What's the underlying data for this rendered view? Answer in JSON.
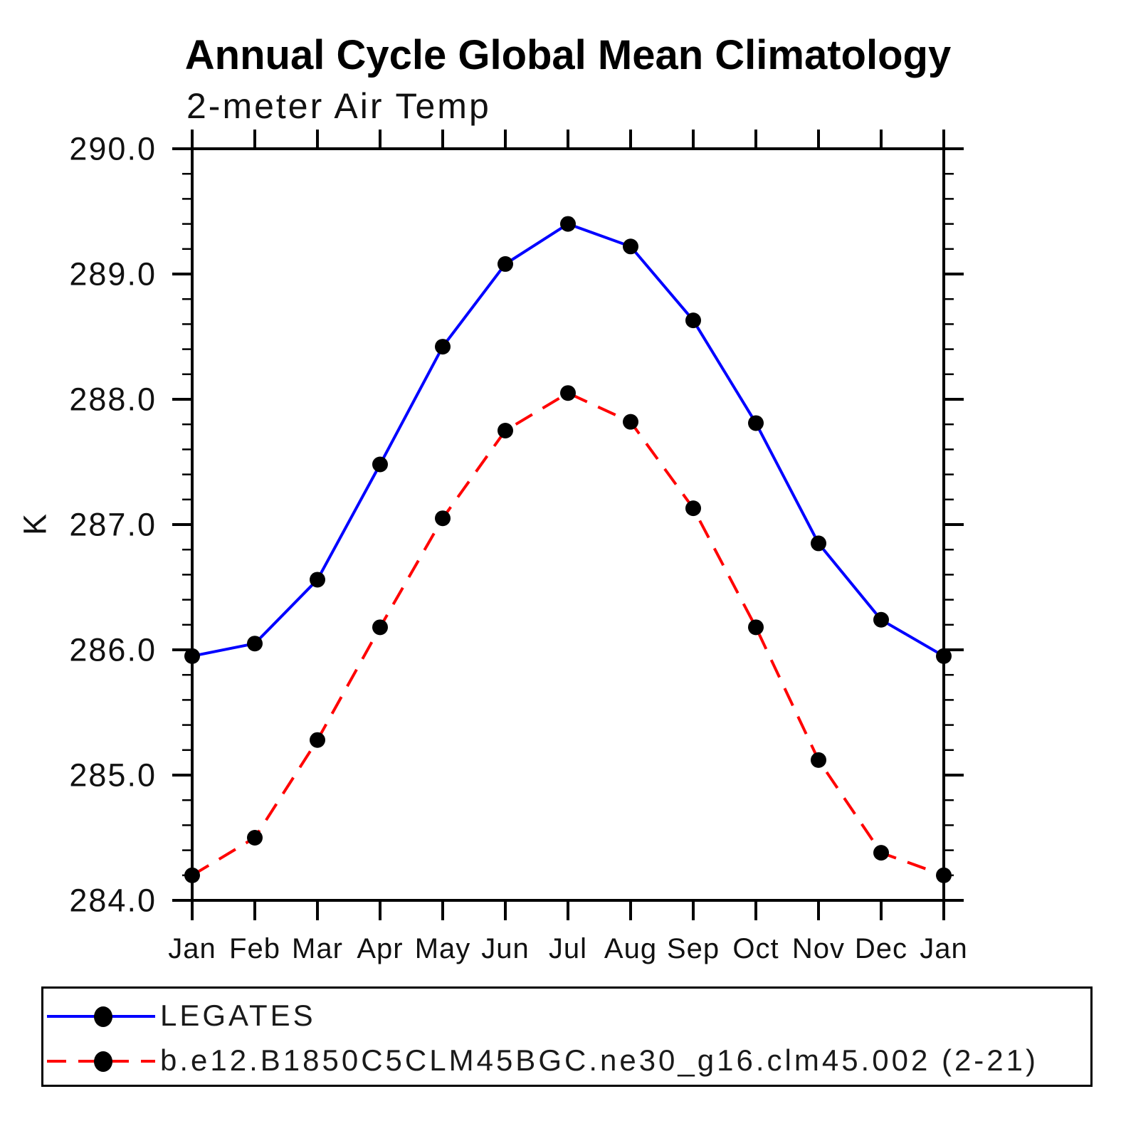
{
  "title": "Annual Cycle Global Mean Climatology",
  "subtitle": "2-meter Air Temp",
  "y_axis": {
    "label": "K",
    "min": 284.0,
    "max": 290.0,
    "major_step": 1.0,
    "minor_step": 0.2,
    "major_tick_labels": [
      "290.0",
      "289.0",
      "288.0",
      "287.0",
      "286.0",
      "285.0",
      "284.0"
    ]
  },
  "x_axis": {
    "labels": [
      "Jan",
      "Feb",
      "Mar",
      "Apr",
      "May",
      "Jun",
      "Jul",
      "Aug",
      "Sep",
      "Oct",
      "Nov",
      "Dec",
      "Jan"
    ]
  },
  "legend": {
    "entries": [
      {
        "label": "LEGATES",
        "color": "#0000ff",
        "style": "solid"
      },
      {
        "label": "b.e12.B1850C5CLM45BGC.ne30_g16.clm45.002 (2-21)",
        "color": "#ff0000",
        "style": "dashed"
      }
    ]
  },
  "colors": {
    "series1": "#0000ff",
    "series2": "#ff0000",
    "marker": "#000000",
    "axis": "#000000"
  },
  "chart_data": {
    "type": "line",
    "title": "Annual Cycle Global Mean Climatology",
    "subtitle": "2-meter Air Temp",
    "ylabel": "K",
    "ylim": [
      284.0,
      290.0
    ],
    "ytick_step": 1.0,
    "yminor_step": 0.2,
    "grid": false,
    "legend_position": "bottom",
    "categories": [
      "Jan",
      "Feb",
      "Mar",
      "Apr",
      "May",
      "Jun",
      "Jul",
      "Aug",
      "Sep",
      "Oct",
      "Nov",
      "Dec",
      "Jan"
    ],
    "series": [
      {
        "name": "LEGATES",
        "color": "#0000ff",
        "style": "solid",
        "marker": "filled-circle",
        "values": [
          285.95,
          286.05,
          286.56,
          287.48,
          288.42,
          289.08,
          289.4,
          289.22,
          288.63,
          287.81,
          286.85,
          286.24,
          285.95
        ]
      },
      {
        "name": "b.e12.B1850C5CLM45BGC.ne30_g16.clm45.002 (2-21)",
        "color": "#ff0000",
        "style": "dashed",
        "marker": "filled-circle",
        "values": [
          284.2,
          284.5,
          285.28,
          286.18,
          287.05,
          287.75,
          288.05,
          287.82,
          287.13,
          286.18,
          285.12,
          284.38,
          284.2
        ]
      }
    ]
  }
}
